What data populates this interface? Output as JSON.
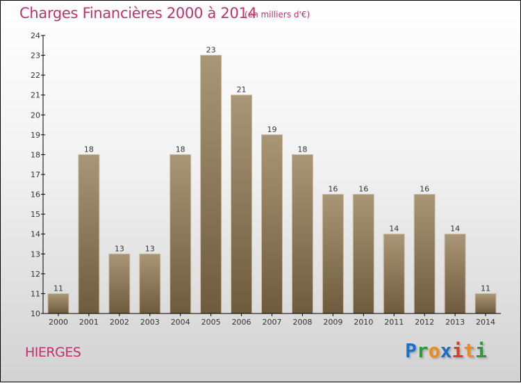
{
  "chart_data": {
    "type": "bar",
    "title": "Charges Financières 2000 à 2014",
    "subtitle": "(en milliers d'€)",
    "categories": [
      "2000",
      "2001",
      "2002",
      "2003",
      "2004",
      "2005",
      "2006",
      "2007",
      "2008",
      "2009",
      "2010",
      "2011",
      "2012",
      "2013",
      "2014"
    ],
    "values": [
      11,
      18,
      13,
      13,
      18,
      23,
      21,
      19,
      18,
      16,
      16,
      14,
      16,
      14,
      11
    ],
    "ylim": [
      10,
      24
    ],
    "yticks": [
      10,
      11,
      12,
      13,
      14,
      15,
      16,
      17,
      18,
      19,
      20,
      21,
      22,
      23,
      24
    ],
    "xlabel": "",
    "ylabel": "",
    "bar_color_top": "#a89676",
    "bar_color_bottom": "#6e5b3e"
  },
  "commune": "HIERGES",
  "logo": "Proxiti"
}
